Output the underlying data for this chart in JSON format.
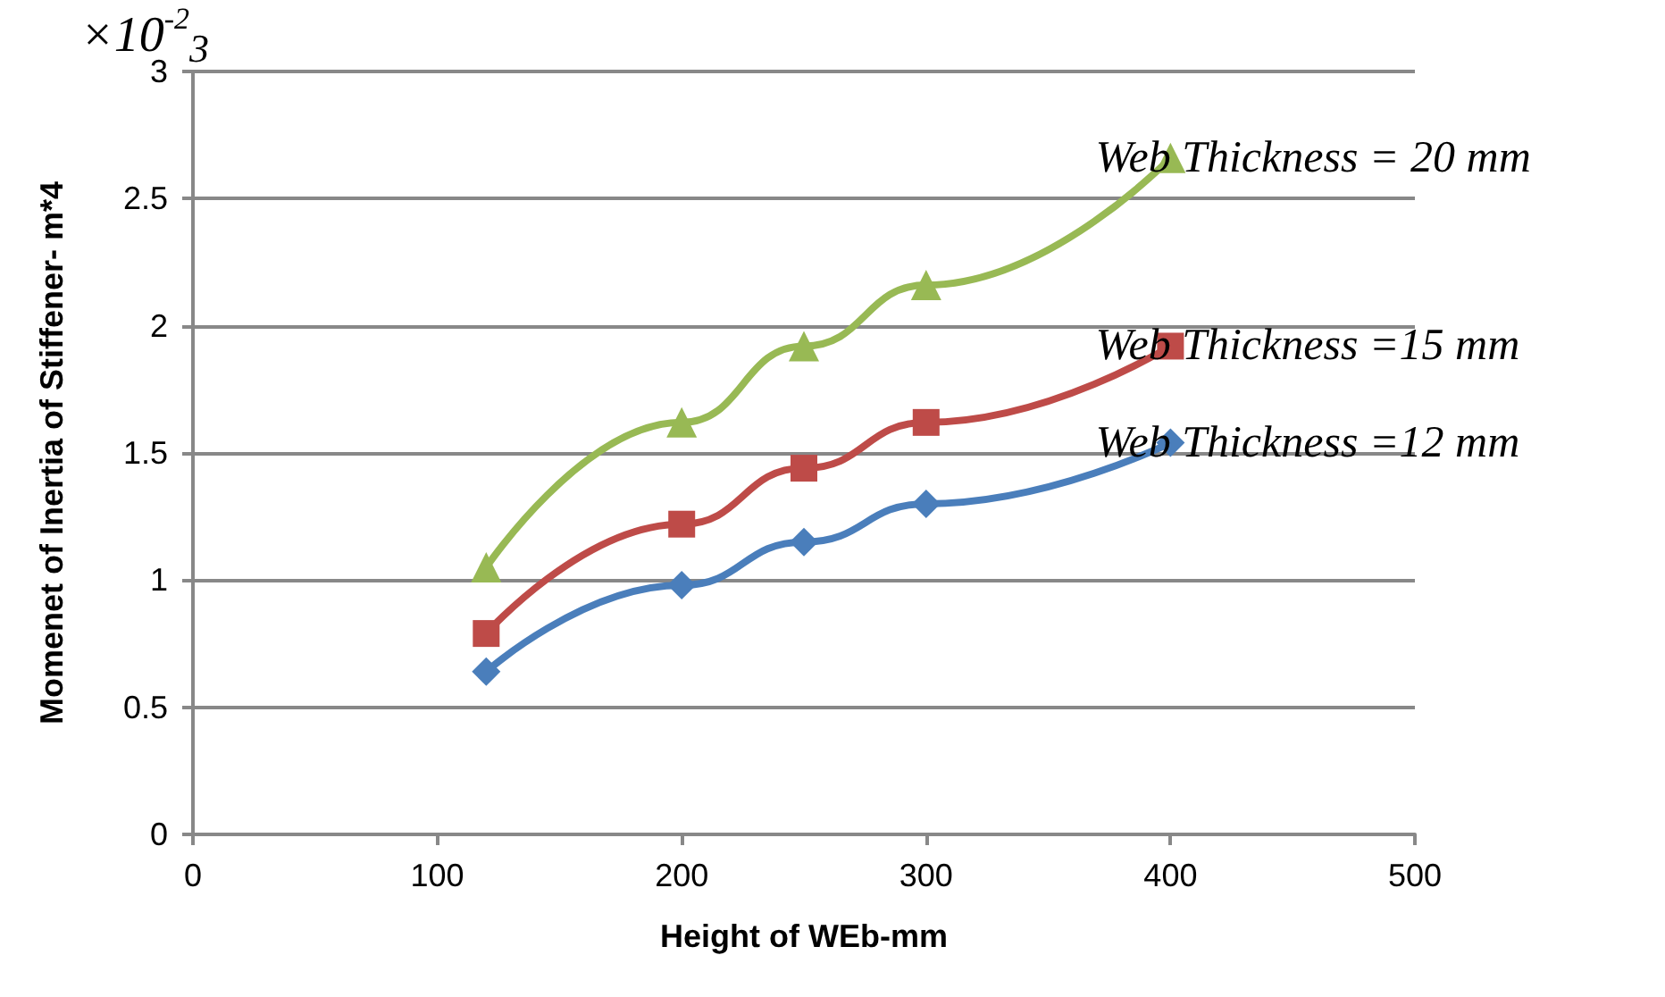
{
  "chart_data": {
    "type": "line",
    "xlabel": "Height of WEb-mm",
    "ylabel": "Momenet of Inertia of Stiffener- m*4",
    "annotations": [
      "×10$^{-2}$$_{3}$"
    ],
    "x": [
      120,
      200,
      250,
      300,
      400
    ],
    "series": [
      {
        "name": "Web Thickness =12 mm",
        "color": "#4a7ebb",
        "marker": "diamond",
        "values": [
          0.64,
          0.98,
          1.15,
          1.3,
          1.54
        ]
      },
      {
        "name": "Web Thickness =15 mm",
        "color": "#be4b48",
        "marker": "square",
        "values": [
          0.79,
          1.22,
          1.44,
          1.62,
          1.92
        ]
      },
      {
        "name": "Web Thickness = 20 mm",
        "color": "#98b954",
        "marker": "triangle",
        "values": [
          1.05,
          1.62,
          1.92,
          2.16,
          2.66
        ]
      }
    ],
    "xlim": [
      0,
      500
    ],
    "xticks": [
      0,
      100,
      200,
      300,
      400,
      500
    ],
    "ylim": [
      0,
      3
    ],
    "yticks": [
      0,
      0.5,
      1,
      1.5,
      2,
      2.5,
      3
    ],
    "grid": "y",
    "legend": false
  }
}
